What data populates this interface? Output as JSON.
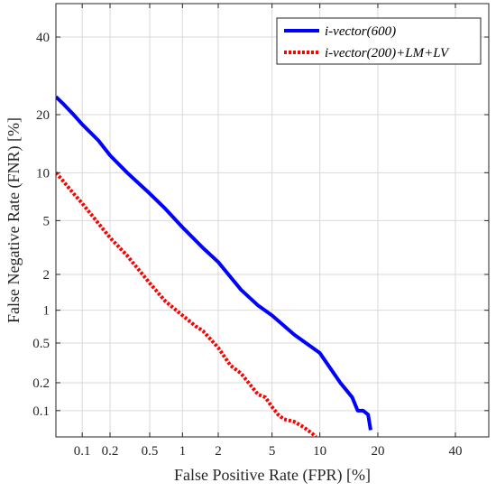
{
  "chart_data": {
    "type": "line",
    "title": "",
    "xlabel": "False Positive Rate (FPR) [%]",
    "ylabel": "False Negative Rate (FNR) [%]",
    "xscale": "probit",
    "yscale": "probit",
    "xlim": [
      0.05,
      50
    ],
    "ylim": [
      0.05,
      50
    ],
    "xticks": [
      0.1,
      0.2,
      0.5,
      1,
      2,
      5,
      10,
      20,
      40
    ],
    "xtick_labels": [
      "0.1",
      "0.2",
      "0.5",
      "1",
      "2",
      "5",
      "10",
      "20",
      "40"
    ],
    "yticks": [
      0.1,
      0.2,
      0.5,
      1,
      2,
      5,
      10,
      20,
      40
    ],
    "ytick_labels": [
      "0.1",
      "0.2",
      "0.5",
      "1",
      "2",
      "5",
      "10",
      "20",
      "40"
    ],
    "grid": true,
    "legend_position": "top-right",
    "series": [
      {
        "name": "i-vector(600)",
        "color": "#0000ff",
        "style": "solid",
        "x": [
          0.05,
          0.06,
          0.08,
          0.1,
          0.15,
          0.2,
          0.3,
          0.5,
          0.7,
          1,
          1.5,
          2,
          3,
          4,
          5,
          7,
          10,
          13,
          15,
          16,
          17,
          18,
          18.5
        ],
        "y": [
          24,
          22.5,
          20,
          18,
          15,
          12.5,
          10,
          7.5,
          6,
          4.5,
          3.2,
          2.5,
          1.5,
          1.1,
          0.9,
          0.6,
          0.4,
          0.2,
          0.14,
          0.1,
          0.1,
          0.09,
          0.06
        ]
      },
      {
        "name": "i-vector(200)+LM+LV",
        "color": "#ff0000",
        "style": "dotted",
        "x": [
          0.05,
          0.06,
          0.08,
          0.1,
          0.15,
          0.2,
          0.3,
          0.5,
          0.7,
          1,
          1.3,
          1.5,
          2,
          2.5,
          3,
          4,
          4.5,
          5,
          5.5,
          6,
          7,
          8,
          9,
          9.5
        ],
        "y": [
          10,
          9,
          7.5,
          6.5,
          4.8,
          3.8,
          2.8,
          1.7,
          1.2,
          0.9,
          0.72,
          0.65,
          0.45,
          0.3,
          0.25,
          0.15,
          0.14,
          0.11,
          0.09,
          0.08,
          0.075,
          0.065,
          0.055,
          0.05
        ]
      }
    ]
  }
}
